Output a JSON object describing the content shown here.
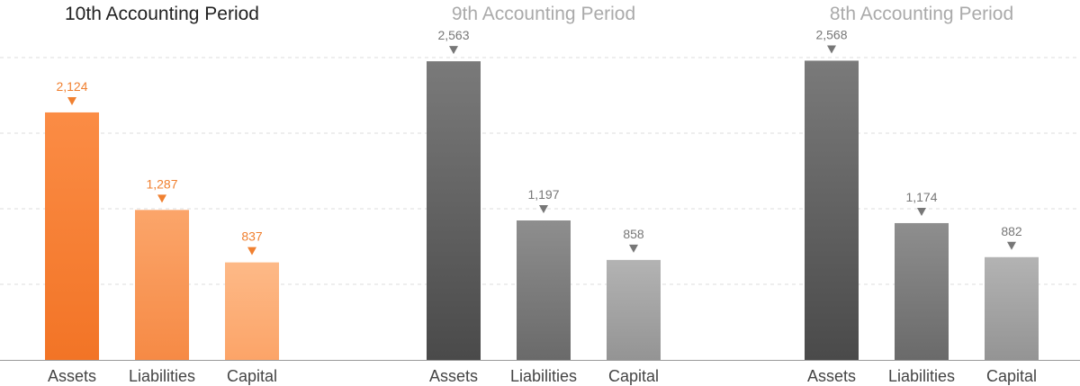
{
  "chart_data": {
    "type": "bar",
    "grid": "horizontal-dashed",
    "ylim": [
      0,
      3000
    ],
    "categories": [
      "Assets",
      "Liabilities",
      "Capital"
    ],
    "groups": [
      {
        "title": "10th Accounting Period",
        "values": [
          2124,
          1287,
          837
        ],
        "labels": [
          "2,124",
          "1,287",
          "837"
        ],
        "theme": "orange"
      },
      {
        "title": "9th Accounting Period",
        "values": [
          2563,
          1197,
          858
        ],
        "labels": [
          "2,563",
          "1,197",
          "858"
        ],
        "theme": "gray"
      },
      {
        "title": "8th Accounting Period",
        "values": [
          2568,
          1174,
          882
        ],
        "labels": [
          "2,568",
          "1,174",
          "882"
        ],
        "theme": "gray"
      }
    ]
  },
  "colors": {
    "orange": [
      "#f57a30",
      "#fa9a58",
      "#fdb07a"
    ],
    "orange_label": "#f08030",
    "gray": [
      "#555555",
      "#7a7a7a",
      "#a3a3a3"
    ],
    "gray_label": "#777777",
    "title_active": "#222222",
    "title_inactive": "#aaaaaa",
    "category_label": "#444444",
    "gridline": "#dddddd",
    "baseline": "#999999"
  }
}
